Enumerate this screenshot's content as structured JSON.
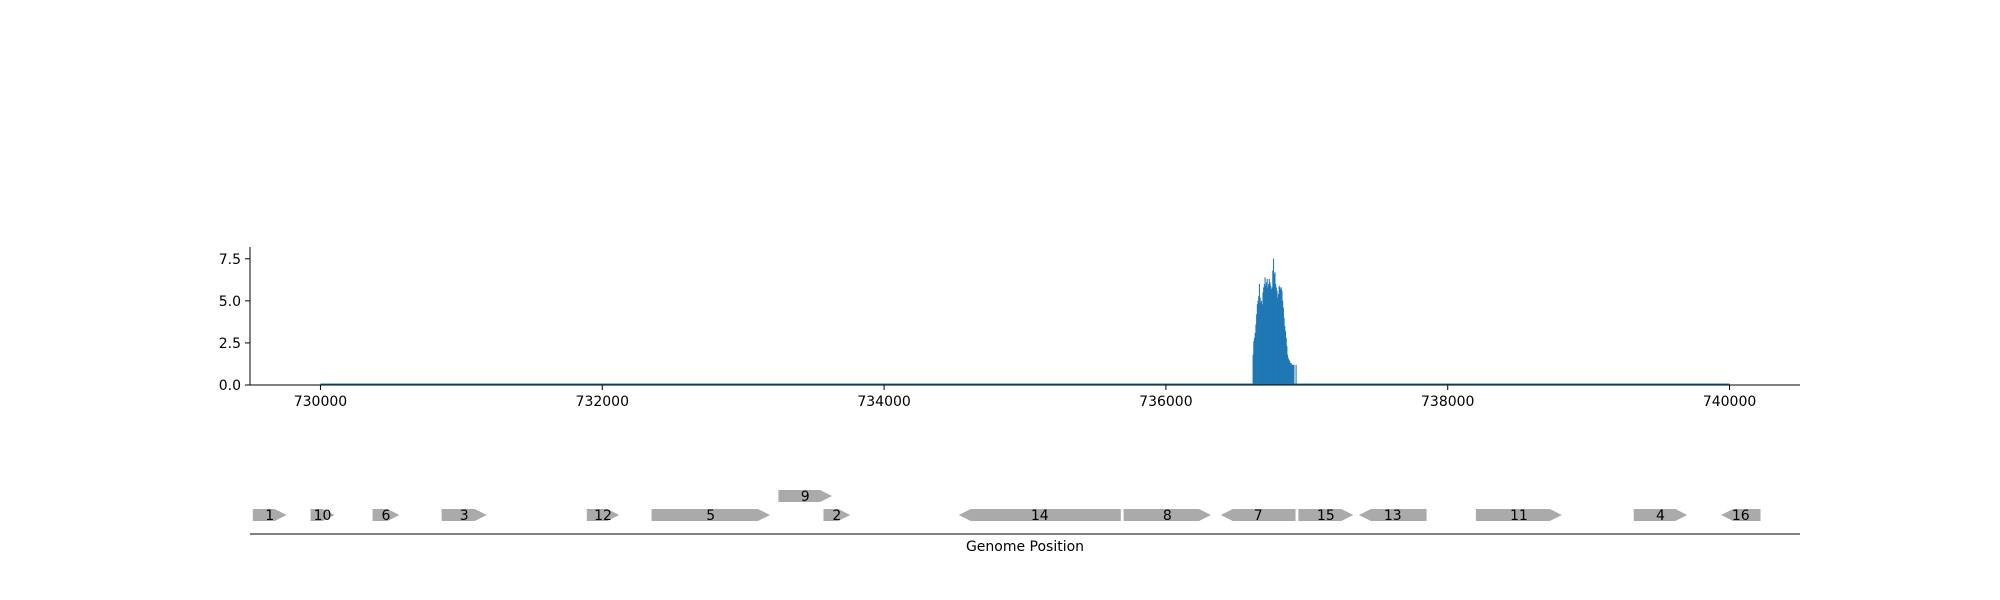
{
  "chart_data": [
    {
      "type": "bar",
      "title": "",
      "xlabel": "",
      "ylabel": "",
      "xlim": [
        729500,
        740500
      ],
      "ylim": [
        0,
        8.2
      ],
      "x_ticks": [
        730000,
        732000,
        734000,
        736000,
        738000,
        740000
      ],
      "x_tick_labels": [
        "730000",
        "732000",
        "734000",
        "736000",
        "738000",
        "740000"
      ],
      "y_ticks": [
        0,
        2.5,
        5,
        7.5
      ],
      "y_tick_labels": [
        "0.0",
        "2.5",
        "5.0",
        "7.5"
      ],
      "grid": false,
      "color": "#1f77b4",
      "bin_width": 5,
      "baseline_range": [
        730000,
        740000
      ],
      "x": [
        736615,
        736620,
        736625,
        736630,
        736635,
        736640,
        736645,
        736650,
        736655,
        736660,
        736665,
        736670,
        736675,
        736680,
        736685,
        736690,
        736695,
        736700,
        736705,
        736710,
        736715,
        736720,
        736725,
        736730,
        736735,
        736740,
        736745,
        736750,
        736755,
        736760,
        736765,
        736770,
        736775,
        736780,
        736785,
        736790,
        736795,
        736800,
        736805,
        736810,
        736815,
        736820,
        736825,
        736830,
        736835,
        736840,
        736845,
        736850,
        736855,
        736860,
        736865,
        736870,
        736875,
        736880,
        736885,
        736890,
        736895,
        736900,
        736905,
        736910,
        736915,
        736920,
        736925,
        736930,
        736935,
        736940,
        736945,
        736950,
        736955,
        736960,
        736965,
        736970,
        736975,
        736980,
        736985,
        736990,
        736995,
        737000,
        737005,
        737010,
        737015,
        737020,
        737025,
        737030,
        737035,
        737040,
        737045,
        737050
      ],
      "values": [
        1.8,
        2.6,
        2.8,
        3.1,
        3.6,
        4.2,
        4.8,
        5.0,
        5.3,
        6.0,
        5.2,
        4.9,
        5.0,
        4.8,
        5.5,
        5.8,
        6.0,
        6.4,
        5.9,
        6.1,
        6.3,
        5.8,
        6.0,
        6.3,
        6.1,
        5.9,
        5.7,
        5.8,
        6.8,
        7.5,
        6.6,
        6.7,
        6.0,
        5.8,
        5.6,
        5.2,
        5.4,
        5.9,
        5.8,
        5.7,
        5.8,
        5.6,
        5.0,
        4.6,
        4.0,
        3.5,
        3.2,
        2.8,
        2.3,
        1.8,
        1.6,
        1.5,
        1.4,
        1.3,
        1.3,
        1.2,
        1.2,
        1.2,
        1.2,
        0.0,
        0.0,
        1.2,
        0.0,
        0.0,
        0.0,
        0.0,
        0.0,
        0.0,
        0.0,
        0.0,
        0.0,
        0.0,
        0.0,
        0.0,
        0.0,
        0.0,
        0.0,
        0.0,
        0.0,
        0.0,
        0.0,
        0.0,
        0.0,
        0.0,
        0.0,
        0.0,
        0.0,
        0.0
      ]
    },
    {
      "type": "gene_track",
      "xlabel": "Genome Position",
      "xlim": [
        729500,
        740500
      ],
      "gene_color": "#aaaaaa",
      "genes": [
        {
          "label": "1",
          "start": 729520,
          "end": 729760,
          "strand": "+",
          "row": 0
        },
        {
          "label": "10",
          "start": 729930,
          "end": 730100,
          "strand": "+",
          "row": 0
        },
        {
          "label": "6",
          "start": 730370,
          "end": 730560,
          "strand": "+",
          "row": 0
        },
        {
          "label": "3",
          "start": 730860,
          "end": 731180,
          "strand": "+",
          "row": 0
        },
        {
          "label": "12",
          "start": 731890,
          "end": 732120,
          "strand": "+",
          "row": 0
        },
        {
          "label": "5",
          "start": 732350,
          "end": 733190,
          "strand": "+",
          "row": 0
        },
        {
          "label": "9",
          "start": 733250,
          "end": 733630,
          "strand": "+",
          "row": 1
        },
        {
          "label": "2",
          "start": 733570,
          "end": 733760,
          "strand": "+",
          "row": 0
        },
        {
          "label": "14",
          "start": 734530,
          "end": 735680,
          "strand": "-",
          "row": 0
        },
        {
          "label": "8",
          "start": 735700,
          "end": 736320,
          "strand": "+",
          "row": 0
        },
        {
          "label": "7",
          "start": 736390,
          "end": 736920,
          "strand": "-",
          "row": 0
        },
        {
          "label": "15",
          "start": 736940,
          "end": 737330,
          "strand": "+",
          "row": 0
        },
        {
          "label": "13",
          "start": 737370,
          "end": 737850,
          "strand": "-",
          "row": 0
        },
        {
          "label": "11",
          "start": 738200,
          "end": 738810,
          "strand": "+",
          "row": 0
        },
        {
          "label": "4",
          "start": 739320,
          "end": 739700,
          "strand": "+",
          "row": 0
        },
        {
          "label": "16",
          "start": 739940,
          "end": 740220,
          "strand": "-",
          "row": 0
        }
      ]
    }
  ]
}
